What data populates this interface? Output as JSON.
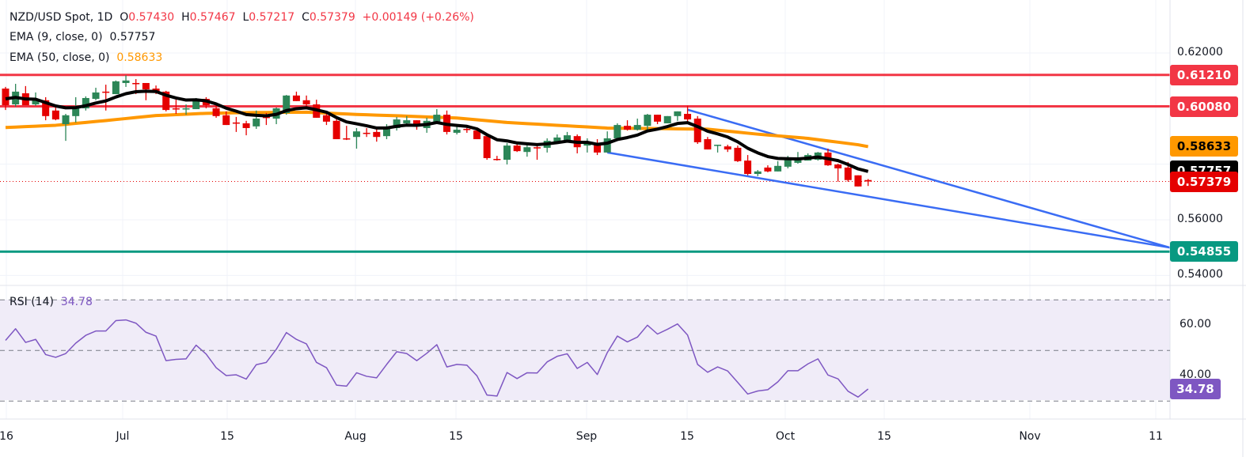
{
  "header": {
    "symbol": "NZD/USD Spot, 1D",
    "open_label": "O",
    "open": "0.57430",
    "high_label": "H",
    "high": "0.57467",
    "low_label": "L",
    "low": "0.57217",
    "close_label": "C",
    "close": "0.57379",
    "change": "+0.00149 (+0.26%)",
    "ema9_label": "EMA (9, close, 0)",
    "ema9_value": "0.57757",
    "ema50_label": "EMA (50, close, 0)",
    "ema50_value": "0.58633"
  },
  "rsi_panel": {
    "label": "RSI (14)",
    "value": "34.78"
  },
  "price_axis": {
    "ticks": [
      "0.62000",
      "0.56000",
      "0.54000"
    ],
    "tick_values": [
      0.62,
      0.56,
      0.54
    ]
  },
  "rsi_axis": {
    "ticks": [
      "60.00",
      "40.00"
    ],
    "tick_values": [
      60,
      40
    ]
  },
  "x_axis": {
    "ticks": [
      "16",
      "Jul",
      "15",
      "Aug",
      "15",
      "Sep",
      "15",
      "Oct",
      "15",
      "Nov",
      "11"
    ]
  },
  "badges": [
    {
      "text": "0.61210",
      "value": 0.6121,
      "bg": "#f23645",
      "fg": "#ffffff"
    },
    {
      "text": "0.60080",
      "value": 0.6008,
      "bg": "#f23645",
      "fg": "#ffffff"
    },
    {
      "text": "0.58633",
      "value": 0.58633,
      "bg": "#ff9800",
      "fg": "#000000"
    },
    {
      "text": "0.57757",
      "value": 0.57757,
      "bg": "#000000",
      "fg": "#ffffff"
    },
    {
      "text": "0.57379",
      "value": 0.57379,
      "bg": "#e50000",
      "fg": "#ffffff"
    },
    {
      "text": "0.54855",
      "value": 0.54855,
      "bg": "#089981",
      "fg": "#ffffff"
    }
  ],
  "rsi_badge": {
    "text": "34.78",
    "value": 34.78,
    "bg": "#7e57c2",
    "fg": "#ffffff"
  },
  "colors": {
    "up": "#2c8657",
    "down": "#e50000",
    "resistance": "#f23645",
    "support": "#089981",
    "trendline": "#3a6cf4",
    "ema9": "#000000",
    "ema50": "#ff9800",
    "rsi": "#7e57c2",
    "rsi_band": "#f0ecf8"
  },
  "chart_data": {
    "type": "candlestick",
    "price_range": [
      0.535,
      0.6395
    ],
    "candles_ohlc": [
      [
        0.6072,
        0.6078,
        0.5995,
        0.6012
      ],
      [
        0.6015,
        0.6089,
        0.6007,
        0.6061
      ],
      [
        0.6055,
        0.6081,
        0.6012,
        0.6012
      ],
      [
        0.6015,
        0.6058,
        0.601,
        0.603
      ],
      [
        0.603,
        0.6041,
        0.5958,
        0.5973
      ],
      [
        0.5993,
        0.601,
        0.5958,
        0.5961
      ],
      [
        0.5944,
        0.5981,
        0.5884,
        0.5976
      ],
      [
        0.5973,
        0.6041,
        0.595,
        0.6007
      ],
      [
        0.6001,
        0.6044,
        0.5993,
        0.6038
      ],
      [
        0.6035,
        0.6075,
        0.603,
        0.6058
      ],
      [
        0.6061,
        0.6086,
        0.5993,
        0.6058
      ],
      [
        0.6052,
        0.6101,
        0.6052,
        0.6098
      ],
      [
        0.6092,
        0.612,
        0.6078,
        0.6101
      ],
      [
        0.6092,
        0.6106,
        0.6052,
        0.6089
      ],
      [
        0.6092,
        0.6092,
        0.603,
        0.6069
      ],
      [
        0.6072,
        0.6083,
        0.6052,
        0.6058
      ],
      [
        0.6061,
        0.6064,
        0.599,
        0.5995
      ],
      [
        0.6001,
        0.6032,
        0.5981,
        0.5998
      ],
      [
        0.5998,
        0.6015,
        0.5978,
        0.6001
      ],
      [
        0.5998,
        0.6038,
        0.5998,
        0.6035
      ],
      [
        0.6035,
        0.6041,
        0.6001,
        0.6012
      ],
      [
        0.6001,
        0.6012,
        0.5967,
        0.5973
      ],
      [
        0.5976,
        0.599,
        0.5941,
        0.5941
      ],
      [
        0.595,
        0.597,
        0.5916,
        0.5947
      ],
      [
        0.5947,
        0.5956,
        0.5904,
        0.593
      ],
      [
        0.5936,
        0.5993,
        0.5927,
        0.5964
      ],
      [
        0.597,
        0.5984,
        0.5941,
        0.5967
      ],
      [
        0.5964,
        0.6004,
        0.5944,
        0.6001
      ],
      [
        0.5984,
        0.6049,
        0.5978,
        0.6047
      ],
      [
        0.6047,
        0.6061,
        0.6027,
        0.6027
      ],
      [
        0.603,
        0.6047,
        0.6001,
        0.6015
      ],
      [
        0.6015,
        0.6032,
        0.5967,
        0.5967
      ],
      [
        0.5976,
        0.5984,
        0.5941,
        0.5953
      ],
      [
        0.5956,
        0.597,
        0.589,
        0.589
      ],
      [
        0.5893,
        0.5938,
        0.5887,
        0.589
      ],
      [
        0.5898,
        0.593,
        0.5856,
        0.5918
      ],
      [
        0.5913,
        0.593,
        0.5898,
        0.591
      ],
      [
        0.5916,
        0.5927,
        0.5881,
        0.5898
      ],
      [
        0.5901,
        0.5944,
        0.589,
        0.593
      ],
      [
        0.593,
        0.597,
        0.5921,
        0.5961
      ],
      [
        0.5947,
        0.5973,
        0.5944,
        0.5958
      ],
      [
        0.5958,
        0.5958,
        0.5924,
        0.5936
      ],
      [
        0.593,
        0.5967,
        0.5913,
        0.5956
      ],
      [
        0.595,
        0.5998,
        0.5947,
        0.5978
      ],
      [
        0.5978,
        0.5993,
        0.5907,
        0.5916
      ],
      [
        0.5913,
        0.5941,
        0.5907,
        0.5924
      ],
      [
        0.5927,
        0.5941,
        0.5913,
        0.5924
      ],
      [
        0.5921,
        0.593,
        0.589,
        0.589
      ],
      [
        0.5901,
        0.5907,
        0.5816,
        0.5822
      ],
      [
        0.5819,
        0.583,
        0.5813,
        0.5816
      ],
      [
        0.5816,
        0.5876,
        0.5799,
        0.5867
      ],
      [
        0.5867,
        0.5881,
        0.5844,
        0.5847
      ],
      [
        0.5844,
        0.5873,
        0.5827,
        0.5861
      ],
      [
        0.5861,
        0.587,
        0.5816,
        0.5859
      ],
      [
        0.5859,
        0.5893,
        0.5842,
        0.5884
      ],
      [
        0.5881,
        0.5907,
        0.5879,
        0.5896
      ],
      [
        0.5887,
        0.5916,
        0.5887,
        0.5904
      ],
      [
        0.5901,
        0.5907,
        0.5839,
        0.5861
      ],
      [
        0.5867,
        0.5893,
        0.5842,
        0.5879
      ],
      [
        0.587,
        0.589,
        0.5833,
        0.5842
      ],
      [
        0.5842,
        0.5918,
        0.5842,
        0.5893
      ],
      [
        0.5893,
        0.5947,
        0.5884,
        0.5941
      ],
      [
        0.5938,
        0.5958,
        0.5921,
        0.5924
      ],
      [
        0.5924,
        0.5964,
        0.5921,
        0.5941
      ],
      [
        0.5938,
        0.5981,
        0.5916,
        0.5978
      ],
      [
        0.5978,
        0.5978,
        0.5944,
        0.5953
      ],
      [
        0.5947,
        0.5973,
        0.5947,
        0.5973
      ],
      [
        0.5973,
        0.599,
        0.5956,
        0.599
      ],
      [
        0.5981,
        0.601,
        0.595,
        0.5961
      ],
      [
        0.5964,
        0.5973,
        0.5873,
        0.5879
      ],
      [
        0.589,
        0.5898,
        0.5853,
        0.5853
      ],
      [
        0.5868,
        0.587,
        0.5842,
        0.587
      ],
      [
        0.5864,
        0.587,
        0.5844,
        0.5853
      ],
      [
        0.5859,
        0.5867,
        0.5808,
        0.5811
      ],
      [
        0.5813,
        0.5833,
        0.576,
        0.5765
      ],
      [
        0.5765,
        0.5779,
        0.5757,
        0.5774
      ],
      [
        0.5788,
        0.5796,
        0.5771,
        0.5774
      ],
      [
        0.5774,
        0.5811,
        0.5774,
        0.5794
      ],
      [
        0.5791,
        0.583,
        0.5785,
        0.5816
      ],
      [
        0.5805,
        0.5844,
        0.5802,
        0.5816
      ],
      [
        0.5813,
        0.5839,
        0.5813,
        0.5833
      ],
      [
        0.5816,
        0.5844,
        0.5813,
        0.5842
      ],
      [
        0.5842,
        0.5856,
        0.5794,
        0.5796
      ],
      [
        0.5799,
        0.5802,
        0.5737,
        0.5785
      ],
      [
        0.5788,
        0.5808,
        0.5737,
        0.5743
      ],
      [
        0.576,
        0.576,
        0.572,
        0.572
      ],
      [
        0.5743,
        0.57467,
        0.57217,
        0.57379
      ]
    ],
    "ema50_samples_every_5_bars": [
      0.5932,
      0.594,
      0.5957,
      0.5975,
      0.5983,
      0.5986,
      0.5987,
      0.5979,
      0.5973,
      0.5966,
      0.595,
      0.594,
      0.593,
      0.5928,
      0.5926,
      0.5908,
      0.5893,
      0.587
    ],
    "ema50_last": 0.58633,
    "horizontal_levels": [
      {
        "value": 0.6121,
        "color": "#f23645"
      },
      {
        "value": 0.6008,
        "color": "#f23645"
      },
      {
        "value": 0.54855,
        "color": "#089981"
      }
    ],
    "last_price_line": 0.57379,
    "trendlines": [
      {
        "name": "upper",
        "start_price": 0.5996,
        "end_price": 0.55
      },
      {
        "name": "lower",
        "start_price": 0.5842,
        "end_price": 0.55
      }
    ],
    "rsi": {
      "range": [
        30,
        70
      ],
      "midline": 50,
      "values": [
        54.0,
        58.6,
        53.2,
        54.4,
        48.4,
        47.3,
        48.8,
        52.9,
        56.0,
        57.7,
        57.7,
        61.8,
        62.1,
        60.8,
        57.2,
        55.7,
        46.0,
        46.5,
        46.7,
        52.1,
        48.6,
        43.2,
        40.1,
        40.4,
        38.7,
        44.4,
        45.3,
        50.5,
        57.1,
        54.4,
        52.6,
        45.3,
        43.2,
        36.3,
        35.9,
        41.2,
        39.8,
        39.2,
        44.5,
        49.5,
        48.8,
        46.0,
        48.9,
        52.3,
        43.5,
        44.5,
        44.2,
        40.0,
        32.4,
        32.0,
        41.3,
        38.9,
        41.2,
        41.1,
        45.5,
        47.7,
        48.7,
        42.9,
        45.3,
        40.5,
        49.2,
        55.7,
        53.4,
        55.3,
        60.0,
        56.5,
        58.4,
        60.5,
        56.1,
        44.5,
        41.4,
        43.5,
        41.9,
        37.4,
        32.8,
        34.0,
        34.5,
        37.6,
        42.0,
        42.0,
        44.7,
        46.7,
        40.3,
        38.8,
        33.9,
        31.6,
        34.78
      ]
    }
  }
}
